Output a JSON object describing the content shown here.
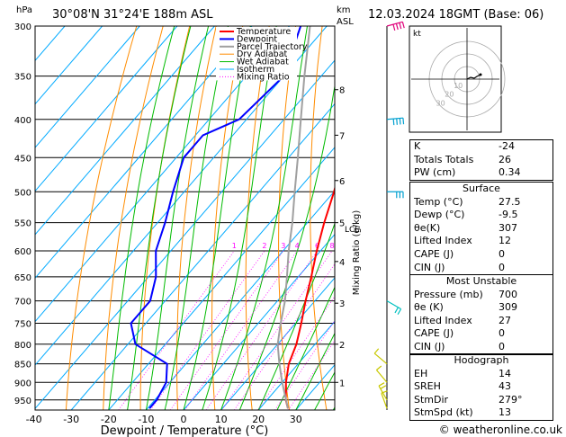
{
  "header": {
    "hpa_label": "hPa",
    "location": "30°08'N 31°24'E 188m ASL",
    "km_label": "km",
    "asl_label": "ASL",
    "datetime": "12.03.2024 18GMT (Base: 06)"
  },
  "hodograph": {
    "label": "kt",
    "rings": [
      "10",
      "20",
      "30"
    ]
  },
  "copyright": "© weatheronline.co.uk",
  "colors": {
    "temperature": "#ff0000",
    "dewpoint": "#0000ff",
    "parcel": "#a0a0a0",
    "dry_adiabat": "#ff8c00",
    "wet_adiabat": "#00bb00",
    "isotherm": "#00aaff",
    "mixing_ratio": "#ff00ff"
  },
  "chart_data": {
    "type": "line",
    "title": "Skew-T log-P",
    "xlabel": "Dewpoint / Temperature (°C)",
    "ylabel": "hPa",
    "xlim": [
      -40,
      35
    ],
    "ylim": [
      980,
      300
    ],
    "x_ticks": [
      "-40",
      "-30",
      "-20",
      "-10",
      "0",
      "10",
      "20",
      "30"
    ],
    "y_ticks": [
      "300",
      "350",
      "400",
      "450",
      "500",
      "550",
      "600",
      "650",
      "700",
      "750",
      "800",
      "850",
      "900",
      "950"
    ],
    "km_ticks": [
      "1",
      "2",
      "3",
      "4",
      "5",
      "6",
      "7",
      "8"
    ],
    "lcl_label": "LCL",
    "mixing_ratio_axis_label": "Mixing Ratio (g/kg)",
    "mixing_ratio_labels": [
      "1",
      "2",
      "3",
      "4",
      "6",
      "8",
      "10",
      "15",
      "20",
      "25"
    ],
    "legend": [
      "Temperature",
      "Dewpoint",
      "Parcel Trajectory",
      "Dry Adiabat",
      "Wet Adiabat",
      "Isotherm",
      "Mixing Ratio"
    ],
    "series": [
      {
        "name": "Temperature",
        "points": [
          [
            975,
            27.5
          ],
          [
            950,
            25
          ],
          [
            900,
            21
          ],
          [
            850,
            17.5
          ],
          [
            800,
            15
          ],
          [
            750,
            11.5
          ],
          [
            700,
            7.5
          ],
          [
            650,
            3.5
          ],
          [
            600,
            -1
          ],
          [
            550,
            -5.5
          ],
          [
            500,
            -10
          ],
          [
            450,
            -15.5
          ],
          [
            400,
            -22.5
          ],
          [
            350,
            -31
          ],
          [
            300,
            -40
          ]
        ]
      },
      {
        "name": "Dewpoint",
        "points": [
          [
            975,
            -9.5
          ],
          [
            950,
            -9.5
          ],
          [
            900,
            -11
          ],
          [
            850,
            -15
          ],
          [
            800,
            -28
          ],
          [
            750,
            -34
          ],
          [
            700,
            -34
          ],
          [
            650,
            -38
          ],
          [
            600,
            -44
          ],
          [
            550,
            -48
          ],
          [
            500,
            -53
          ],
          [
            450,
            -58
          ],
          [
            420,
            -58
          ],
          [
            400,
            -52
          ],
          [
            350,
            -50
          ],
          [
            300,
            -57
          ]
        ]
      },
      {
        "name": "Parcel Trajectory",
        "points": [
          [
            975,
            27.5
          ],
          [
            900,
            20
          ],
          [
            850,
            15
          ],
          [
            800,
            10
          ],
          [
            750,
            6
          ],
          [
            700,
            2
          ],
          [
            650,
            -3
          ],
          [
            600,
            -8.5
          ],
          [
            550,
            -14
          ],
          [
            500,
            -20.5
          ],
          [
            450,
            -27.5
          ],
          [
            400,
            -35.5
          ],
          [
            350,
            -44.5
          ],
          [
            300,
            -54.5
          ]
        ]
      }
    ]
  },
  "wind_barbs": [
    {
      "p": 975,
      "dir": 20,
      "kt": 10,
      "color": "#c8c800"
    },
    {
      "p": 950,
      "dir": 30,
      "kt": 15,
      "color": "#c8c800"
    },
    {
      "p": 900,
      "dir": 40,
      "kt": 10,
      "color": "#c8c800"
    },
    {
      "p": 850,
      "dir": 50,
      "kt": 10,
      "color": "#c8c800"
    },
    {
      "p": 700,
      "dir": 240,
      "kt": 15,
      "color": "#00c0c0"
    },
    {
      "p": 500,
      "dir": 270,
      "kt": 30,
      "color": "#00a0d0"
    },
    {
      "p": 400,
      "dir": 275,
      "kt": 35,
      "color": "#00a0d0"
    },
    {
      "p": 300,
      "dir": 285,
      "kt": 60,
      "color": "#e0007a"
    }
  ],
  "indices": {
    "K": "-24",
    "Totals Totals": "26",
    "PW (cm)": "0.34"
  },
  "table": {
    "rows1": [
      {
        "k": "K",
        "v": "-24"
      },
      {
        "k": "Totals Totals",
        "v": "26"
      },
      {
        "k": "PW (cm)",
        "v": "0.34"
      }
    ],
    "surface_title": "Surface",
    "surface": [
      {
        "k": "Temp (°C)",
        "v": "27.5"
      },
      {
        "k": "Dewp (°C)",
        "v": "-9.5"
      },
      {
        "k": "θe(K)",
        "v": "307"
      },
      {
        "k": "Lifted Index",
        "v": "12"
      },
      {
        "k": "CAPE (J)",
        "v": "0"
      },
      {
        "k": "CIN (J)",
        "v": "0"
      }
    ],
    "unstable_title": "Most Unstable",
    "unstable": [
      {
        "k": "Pressure (mb)",
        "v": "700"
      },
      {
        "k": "θe (K)",
        "v": "309"
      },
      {
        "k": "Lifted Index",
        "v": "27"
      },
      {
        "k": "CAPE (J)",
        "v": "0"
      },
      {
        "k": "CIN (J)",
        "v": "0"
      }
    ],
    "hodo_title": "Hodograph",
    "hodo": [
      {
        "k": "EH",
        "v": "14"
      },
      {
        "k": "SREH",
        "v": "43"
      },
      {
        "k": "StmDir",
        "v": "279°"
      },
      {
        "k": "StmSpd (kt)",
        "v": "13"
      }
    ]
  }
}
